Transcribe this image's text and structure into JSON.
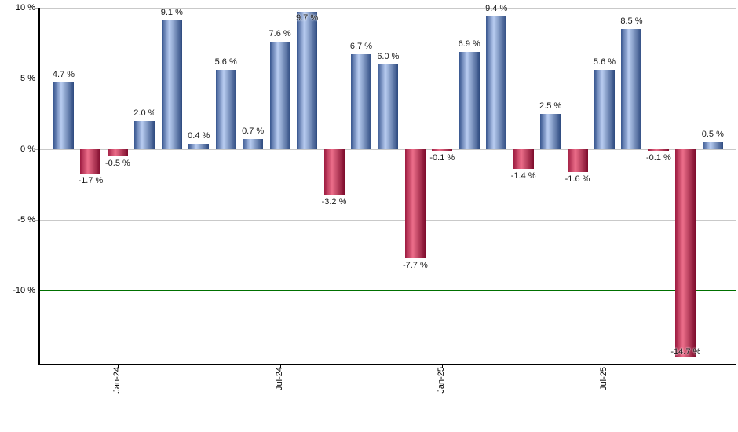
{
  "chart_data": {
    "type": "bar",
    "title": "",
    "values": [
      4.7,
      -1.7,
      -0.5,
      2.0,
      9.1,
      0.4,
      5.6,
      0.7,
      7.6,
      9.7,
      -3.2,
      6.7,
      6.0,
      -7.7,
      -0.1,
      6.9,
      9.4,
      -1.4,
      2.5,
      -1.6,
      5.6,
      8.5,
      -0.1,
      -14.7,
      0.5
    ],
    "data_labels": [
      "4.7 %",
      "-1.7 %",
      "-0.5 %",
      "2.0 %",
      "9.1 %",
      "0.4 %",
      "5.6 %",
      "0.7 %",
      "7.6 %",
      "9.7 %",
      "-3.2 %",
      "6.7 %",
      "6.0 %",
      "-7.7 %",
      "-0.1 %",
      "6.9 %",
      "9.4 %",
      "-1.4 %",
      "2.5 %",
      "-1.6 %",
      "5.6 %",
      "8.5 %",
      "-0.1 %",
      "-14.7 %",
      "0.5 %"
    ],
    "x_tick_positions": [
      3,
      9,
      15,
      21
    ],
    "x_tick_labels": [
      "Jan-24",
      "Jul-24",
      "Jan-25",
      "Jul-25"
    ],
    "y_tick_values": [
      10,
      5,
      0,
      -5,
      -10
    ],
    "y_tick_labels": [
      "10 %",
      "5 %",
      "0 %",
      "-5 %",
      "-10 %"
    ],
    "ylim": [
      -15.2,
      10
    ],
    "grid": true,
    "legend": "none",
    "reference_line": {
      "y": -10,
      "color": "#007000"
    },
    "colors": {
      "positive_edge": "#38568f",
      "positive_mid": "#b9cdf1",
      "positive_edge2": "#2d4a7f",
      "negative_edge": "#9d1b40",
      "negative_mid": "#ec6e8a",
      "negative_edge2": "#7d0b2b",
      "grid": "#c9c9c9",
      "axis": "#000000",
      "label_text": "#1a1a1a"
    }
  }
}
